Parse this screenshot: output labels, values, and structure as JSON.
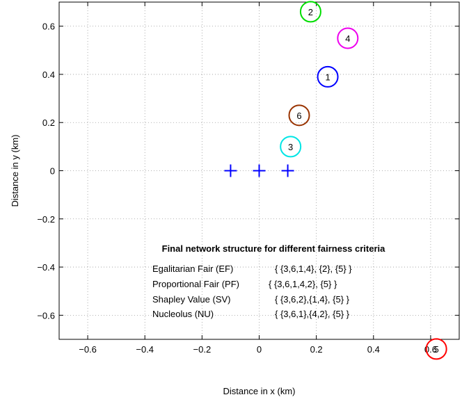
{
  "chart_data": {
    "type": "scatter",
    "xlabel": "Distance in x (km)",
    "ylabel": "Distance in y (km)",
    "xlim": [
      -0.7,
      0.7
    ],
    "ylim": [
      -0.7,
      0.7
    ],
    "x_ticks": [
      "-0.6",
      "-0.4",
      "-0.2",
      "0",
      "0.2",
      "0.4",
      "0.6"
    ],
    "y_ticks": [
      "0.6",
      "0.4",
      "0.2",
      "0",
      "-0.2",
      "-0.4",
      "-0.6"
    ],
    "grid": true,
    "base_stations": [
      {
        "x": -0.1,
        "y": 0
      },
      {
        "x": 0,
        "y": 0
      },
      {
        "x": 0.1,
        "y": 0
      }
    ],
    "nodes": [
      {
        "label": "1",
        "x": 0.24,
        "y": 0.39,
        "color": "#0000ff"
      },
      {
        "label": "2",
        "x": 0.18,
        "y": 0.66,
        "color": "#00dd00"
      },
      {
        "label": "3",
        "x": 0.11,
        "y": 0.1,
        "color": "#00e5e5"
      },
      {
        "label": "4",
        "x": 0.31,
        "y": 0.55,
        "color": "#ee00ee"
      },
      {
        "label": "5",
        "x": 0.62,
        "y": -0.74,
        "color": "#ff0000"
      },
      {
        "label": "6",
        "x": 0.14,
        "y": 0.23,
        "color": "#993300"
      }
    ],
    "annotation": {
      "title": "Final network structure for different fairness criteria",
      "rows": [
        {
          "name": "Egalitarian Fair (EF)",
          "value": "{ {3,6,1,4}, {2}, {5} }"
        },
        {
          "name": "Proportional Fair (PF)",
          "value": "{ {3,6,1,4,2}, {5} }"
        },
        {
          "name": "Shapley Value (SV)",
          "value": "{ {3,6,2},{1,4}, {5} }"
        },
        {
          "name": "Nucleolus (NU)",
          "value": "{ {3,6,1},{4,2}, {5} }"
        }
      ]
    }
  }
}
